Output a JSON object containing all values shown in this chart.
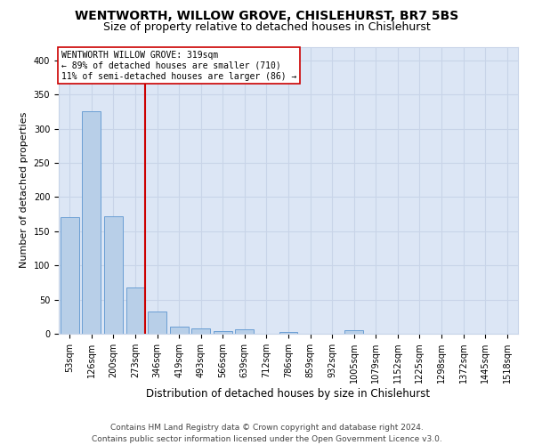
{
  "title": "WENTWORTH, WILLOW GROVE, CHISLEHURST, BR7 5BS",
  "subtitle": "Size of property relative to detached houses in Chislehurst",
  "xlabel": "Distribution of detached houses by size in Chislehurst",
  "ylabel": "Number of detached properties",
  "footer_line1": "Contains HM Land Registry data © Crown copyright and database right 2024.",
  "footer_line2": "Contains public sector information licensed under the Open Government Licence v3.0.",
  "categories": [
    "53sqm",
    "126sqm",
    "200sqm",
    "273sqm",
    "346sqm",
    "419sqm",
    "493sqm",
    "566sqm",
    "639sqm",
    "712sqm",
    "786sqm",
    "859sqm",
    "932sqm",
    "1005sqm",
    "1079sqm",
    "1152sqm",
    "1225sqm",
    "1298sqm",
    "1372sqm",
    "1445sqm",
    "1518sqm"
  ],
  "values": [
    170,
    325,
    172,
    68,
    33,
    10,
    8,
    4,
    7,
    0,
    3,
    0,
    0,
    5,
    0,
    0,
    0,
    0,
    0,
    0,
    0
  ],
  "bar_color": "#b8cfe8",
  "bar_edge_color": "#6b9fd4",
  "grid_color": "#c8d4e8",
  "background_color": "#dce6f5",
  "vline_color": "#cc0000",
  "vline_x": 3.43,
  "annotation_text": "WENTWORTH WILLOW GROVE: 319sqm\n← 89% of detached houses are smaller (710)\n11% of semi-detached houses are larger (86) →",
  "annotation_box_color": "#ffffff",
  "annotation_box_edge_color": "#cc0000",
  "ylim": [
    0,
    420
  ],
  "yticks": [
    0,
    50,
    100,
    150,
    200,
    250,
    300,
    350,
    400
  ],
  "title_fontsize": 10,
  "subtitle_fontsize": 9,
  "annotation_fontsize": 7,
  "xlabel_fontsize": 8.5,
  "ylabel_fontsize": 8,
  "tick_fontsize": 7,
  "footer_fontsize": 6.5
}
